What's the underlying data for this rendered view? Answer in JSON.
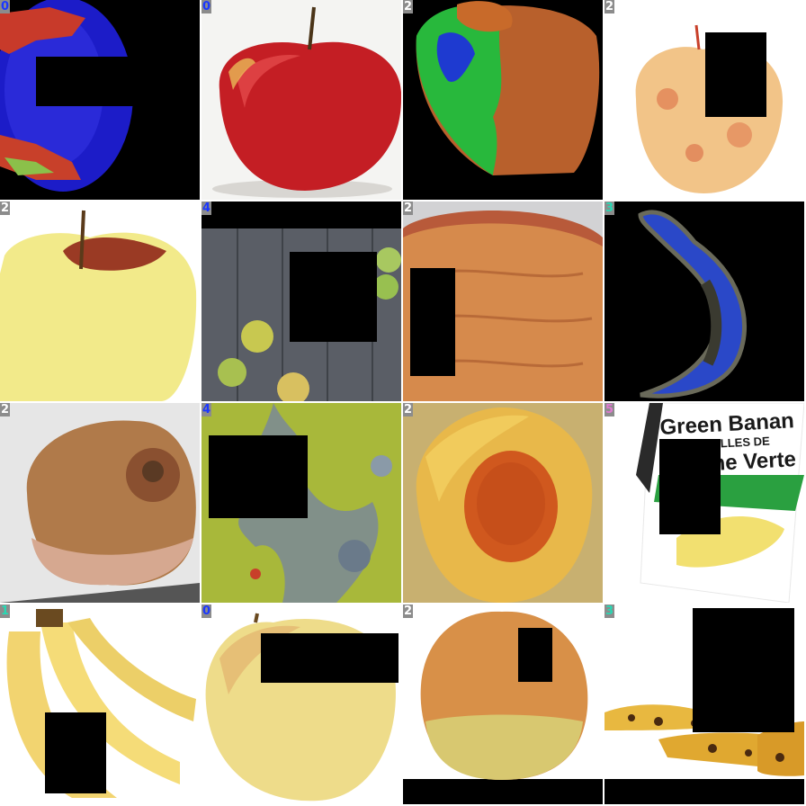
{
  "tiles": [
    {
      "label": "0",
      "label_color": "#1a37ff"
    },
    {
      "label": "0",
      "label_color": "#1a37ff"
    },
    {
      "label": "2",
      "label_color": "#ffffff"
    },
    {
      "label": "2",
      "label_color": "#ffffff"
    },
    {
      "label": "2",
      "label_color": "#ffffff"
    },
    {
      "label": "4",
      "label_color": "#1a37ff"
    },
    {
      "label": "2",
      "label_color": "#ffffff"
    },
    {
      "label": "3",
      "label_color": "#27d9b4"
    },
    {
      "label": "2",
      "label_color": "#ffffff"
    },
    {
      "label": "4",
      "label_color": "#1a37ff"
    },
    {
      "label": "2",
      "label_color": "#ffffff"
    },
    {
      "label": "5",
      "label_color": "#e07ad0"
    },
    {
      "label": "1",
      "label_color": "#27d9b4"
    },
    {
      "label": "0",
      "label_color": "#1a37ff"
    },
    {
      "label": "2",
      "label_color": "#ffffff"
    },
    {
      "label": "3",
      "label_color": "#27d9b4"
    }
  ],
  "package_text": {
    "line1": "Green Banan",
    "line2": "BOUSTILLES DE",
    "line3": "ne Verte"
  }
}
